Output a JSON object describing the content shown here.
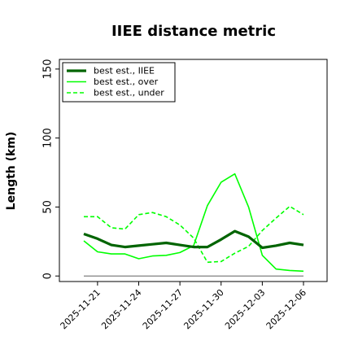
{
  "chart_data": {
    "type": "line",
    "title": "IIEE distance metric",
    "xlabel": "",
    "ylabel": "Length (km)",
    "x": [
      "2025-11-20",
      "2025-11-21",
      "2025-11-22",
      "2025-11-23",
      "2025-11-24",
      "2025-11-25",
      "2025-11-26",
      "2025-11-27",
      "2025-11-28",
      "2025-11-29",
      "2025-11-30",
      "2025-12-01",
      "2025-12-02",
      "2025-12-03",
      "2025-12-04",
      "2025-12-05",
      "2025-12-06"
    ],
    "xticks": [
      "2025-11-21",
      "2025-11-24",
      "2025-11-27",
      "2025-11-30",
      "2025-12-03",
      "2025-12-06"
    ],
    "yticks": [
      0,
      50,
      100,
      150
    ],
    "ylim": [
      -4,
      157
    ],
    "grid": false,
    "legend_position": "top-left",
    "series": [
      {
        "name": "best est., IIEE",
        "color": "#006400",
        "style": "solid",
        "width": "thick",
        "values": [
          30.5,
          27,
          22.5,
          21,
          22,
          23,
          24,
          22.5,
          21,
          21,
          26.5,
          32.5,
          28.5,
          20.5,
          22,
          24,
          22.5
        ]
      },
      {
        "name": "best est., over",
        "color": "#00ff00",
        "style": "solid",
        "width": "normal",
        "values": [
          25.5,
          17.5,
          16,
          16,
          12.5,
          14.5,
          15,
          17,
          22,
          51,
          68,
          74,
          50,
          15,
          5,
          4,
          3.5
        ]
      },
      {
        "name": "best est., under",
        "color": "#00ff00",
        "style": "dashed",
        "width": "normal",
        "values": [
          43,
          43,
          35,
          34,
          44.5,
          46,
          43,
          37,
          27.5,
          10,
          10.5,
          16.5,
          21.5,
          33,
          42,
          50.5,
          44.5
        ]
      }
    ],
    "baseline": {
      "value": 0,
      "color": "#808080"
    }
  }
}
